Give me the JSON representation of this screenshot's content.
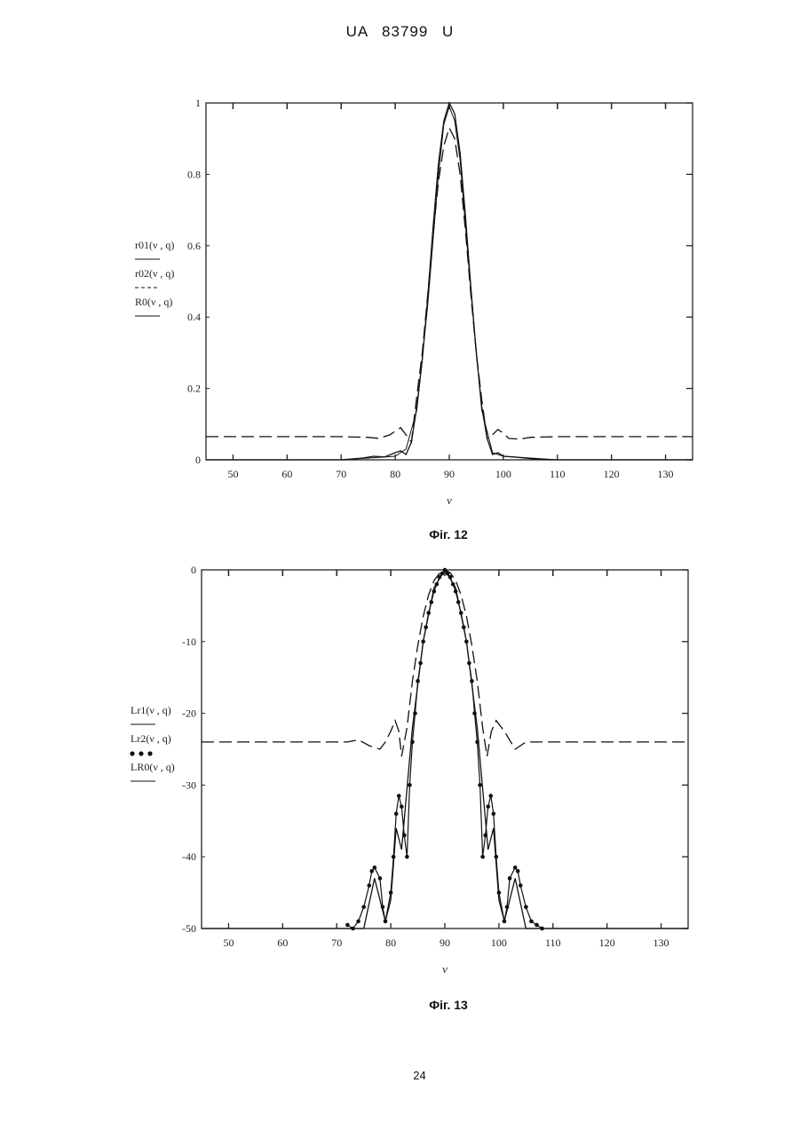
{
  "header": "UA 83799 U",
  "page_number": "24",
  "chart_data": [
    {
      "type": "line",
      "caption": "Фіг. 12",
      "xlabel": "ν",
      "ylabel": "",
      "xlim": [
        45,
        135
      ],
      "ylim": [
        0,
        1
      ],
      "xticks": [
        50,
        60,
        70,
        80,
        90,
        100,
        110,
        120,
        130
      ],
      "yticks": [
        0,
        0.2,
        0.4,
        0.6,
        0.8,
        1
      ],
      "ytick_labels": [
        "0",
        "0.2",
        "0.4",
        "0.6",
        "0.8",
        "1"
      ],
      "legend": [
        "r01(ν , q)",
        "r02(ν , q)",
        "R0(ν , q)"
      ],
      "series": [
        {
          "name": "r01(ν , q)",
          "style": "solid",
          "x": [
            45,
            60,
            70,
            74,
            76,
            78,
            80,
            81,
            82,
            83,
            84,
            85,
            86,
            87,
            88,
            89,
            90,
            91,
            92,
            93,
            94,
            95,
            96,
            97,
            98,
            99,
            100,
            102,
            104,
            106,
            110,
            120,
            135
          ],
          "y": [
            0,
            0,
            0,
            0.005,
            0.01,
            0.008,
            0.02,
            0.025,
            0.015,
            0.05,
            0.15,
            0.28,
            0.45,
            0.65,
            0.83,
            0.95,
            1.0,
            0.97,
            0.86,
            0.68,
            0.48,
            0.3,
            0.15,
            0.06,
            0.015,
            0.02,
            0.01,
            0.008,
            0.005,
            0.002,
            0,
            0,
            0
          ]
        },
        {
          "name": "r02(ν , q)",
          "style": "dashed",
          "x": [
            45,
            60,
            70,
            75,
            77,
            79,
            80,
            81,
            82,
            83,
            84,
            85,
            86,
            87,
            88,
            89,
            90,
            91,
            92,
            93,
            94,
            95,
            96,
            97,
            98,
            99,
            100,
            101,
            103,
            105,
            110,
            120,
            135
          ],
          "y": [
            0.065,
            0.065,
            0.065,
            0.063,
            0.06,
            0.07,
            0.08,
            0.09,
            0.07,
            0.05,
            0.18,
            0.3,
            0.46,
            0.63,
            0.78,
            0.88,
            0.93,
            0.9,
            0.8,
            0.64,
            0.46,
            0.3,
            0.17,
            0.06,
            0.07,
            0.085,
            0.075,
            0.06,
            0.058,
            0.063,
            0.065,
            0.065,
            0.065
          ]
        },
        {
          "name": "R0(ν , q)",
          "style": "solid-thin",
          "x": [
            45,
            70,
            80,
            82,
            84,
            86,
            88,
            89,
            90,
            91,
            92,
            94,
            96,
            98,
            100,
            110,
            135
          ],
          "y": [
            0,
            0,
            0.01,
            0.03,
            0.14,
            0.43,
            0.8,
            0.94,
            0.99,
            0.95,
            0.84,
            0.47,
            0.14,
            0.02,
            0.01,
            0,
            0
          ]
        }
      ]
    },
    {
      "type": "line",
      "caption": "Фіг. 13",
      "xlabel": "ν",
      "ylabel": "",
      "xlim": [
        45,
        135
      ],
      "ylim": [
        -50,
        0
      ],
      "xticks": [
        50,
        60,
        70,
        80,
        90,
        100,
        110,
        120,
        130
      ],
      "yticks": [
        -50,
        -40,
        -30,
        -20,
        -10,
        0
      ],
      "ytick_labels": [
        "-50",
        "-40",
        "-30",
        "-20",
        "-10",
        "0"
      ],
      "legend": [
        "Lr1(ν , q)",
        "Lr2(ν , q)",
        "LR0(ν , q)"
      ],
      "series": [
        {
          "name": "Lr1(ν , q)",
          "style": "dashed",
          "x": [
            45,
            60,
            72,
            74,
            76,
            78,
            79,
            80,
            80.8,
            81.5,
            82,
            83,
            84,
            85,
            86,
            87,
            88,
            89,
            90,
            91,
            92,
            93,
            94,
            95,
            96,
            97,
            97.8,
            98.6,
            99.5,
            101,
            103,
            105,
            108,
            120,
            135
          ],
          "y": [
            -24,
            -24,
            -24,
            -23.7,
            -24.5,
            -25,
            -24,
            -22.5,
            -21,
            -22.5,
            -26,
            -22,
            -15.5,
            -10.5,
            -6.5,
            -3.5,
            -1.5,
            -0.5,
            0,
            -0.4,
            -1.5,
            -3.5,
            -6.5,
            -10.5,
            -15.5,
            -22,
            -26,
            -22.5,
            -21,
            -22.5,
            -25,
            -24,
            -24,
            -24,
            -24
          ]
        },
        {
          "name": "Lr2(ν , q)",
          "style": "dotted-markers",
          "x": [
            72,
            73,
            74,
            75,
            76,
            76.5,
            77,
            78,
            78.5,
            79,
            80,
            80.5,
            81,
            81.5,
            82,
            82.5,
            83,
            83.5,
            84,
            84.5,
            85,
            85.5,
            86,
            86.5,
            87,
            87.5,
            88,
            88.5,
            89,
            89.5,
            90,
            90.5,
            91,
            91.5,
            92,
            92.5,
            93,
            93.5,
            94,
            94.5,
            95,
            95.5,
            96,
            96.5,
            97,
            97.5,
            98,
            98.5,
            99,
            99.5,
            100,
            101,
            101.5,
            102,
            103,
            103.5,
            104,
            105,
            106,
            107,
            108
          ],
          "y": [
            -49.5,
            -50,
            -49,
            -47,
            -44,
            -42,
            -41.5,
            -43,
            -47,
            -49,
            -45,
            -40,
            -34,
            -31.5,
            -33,
            -37,
            -40,
            -30,
            -24,
            -20,
            -15.5,
            -13,
            -10,
            -8,
            -6,
            -4.5,
            -3,
            -2,
            -1,
            -0.5,
            0,
            -0.5,
            -1,
            -2,
            -3,
            -4.5,
            -6,
            -8,
            -10,
            -13,
            -15.5,
            -20,
            -24,
            -30,
            -40,
            -37,
            -33,
            -31.5,
            -34,
            -40,
            -45,
            -49,
            -47,
            -43,
            -41.5,
            -42,
            -44,
            -47,
            -49,
            -49.5,
            -50
          ]
        },
        {
          "name": "LR0(ν , q)",
          "style": "solid",
          "x": [
            45,
            70,
            75,
            77,
            79,
            80,
            81,
            82,
            84,
            86,
            88,
            90,
            92,
            94,
            96,
            98,
            99,
            100,
            101,
            103,
            105,
            110,
            135
          ],
          "y": [
            -50,
            -50,
            -50,
            -43,
            -49,
            -46,
            -36,
            -39,
            -22,
            -10,
            -2.5,
            0,
            -2.5,
            -10,
            -22,
            -39,
            -36,
            -46,
            -49,
            -43,
            -50,
            -50,
            -50
          ]
        }
      ]
    }
  ]
}
